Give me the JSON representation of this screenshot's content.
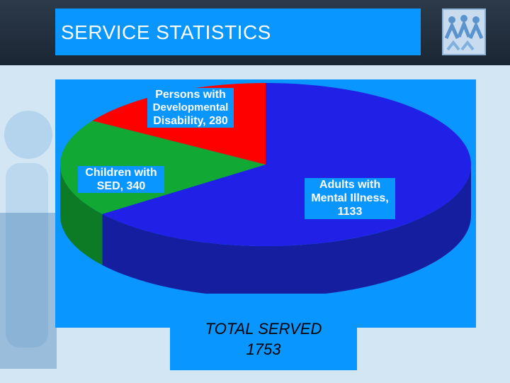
{
  "slide": {
    "title": "SERVICE STATISTICS",
    "total_label": "TOTAL SERVED",
    "total_value": "1753"
  },
  "chart_data": {
    "type": "pie",
    "slices": [
      {
        "label": "Adults with Mental Illness, 1133",
        "value": 1133,
        "color": "#2020e6",
        "side_color": "#161ea0"
      },
      {
        "label": "Children with SED, 340",
        "value": 340,
        "color": "#11a833",
        "side_color": "#0d7a26"
      },
      {
        "label": "Persons with Developmental Disability, 280",
        "value": 280,
        "color": "#ff0000",
        "side_color": "#b00000"
      }
    ],
    "data_labels": {
      "adults": [
        "Adults with",
        "Mental Illness,",
        "1133"
      ],
      "children": [
        "Children with",
        "SED, 340"
      ],
      "persons": [
        "Persons with",
        "Developmental",
        "Disability, 280"
      ]
    }
  }
}
